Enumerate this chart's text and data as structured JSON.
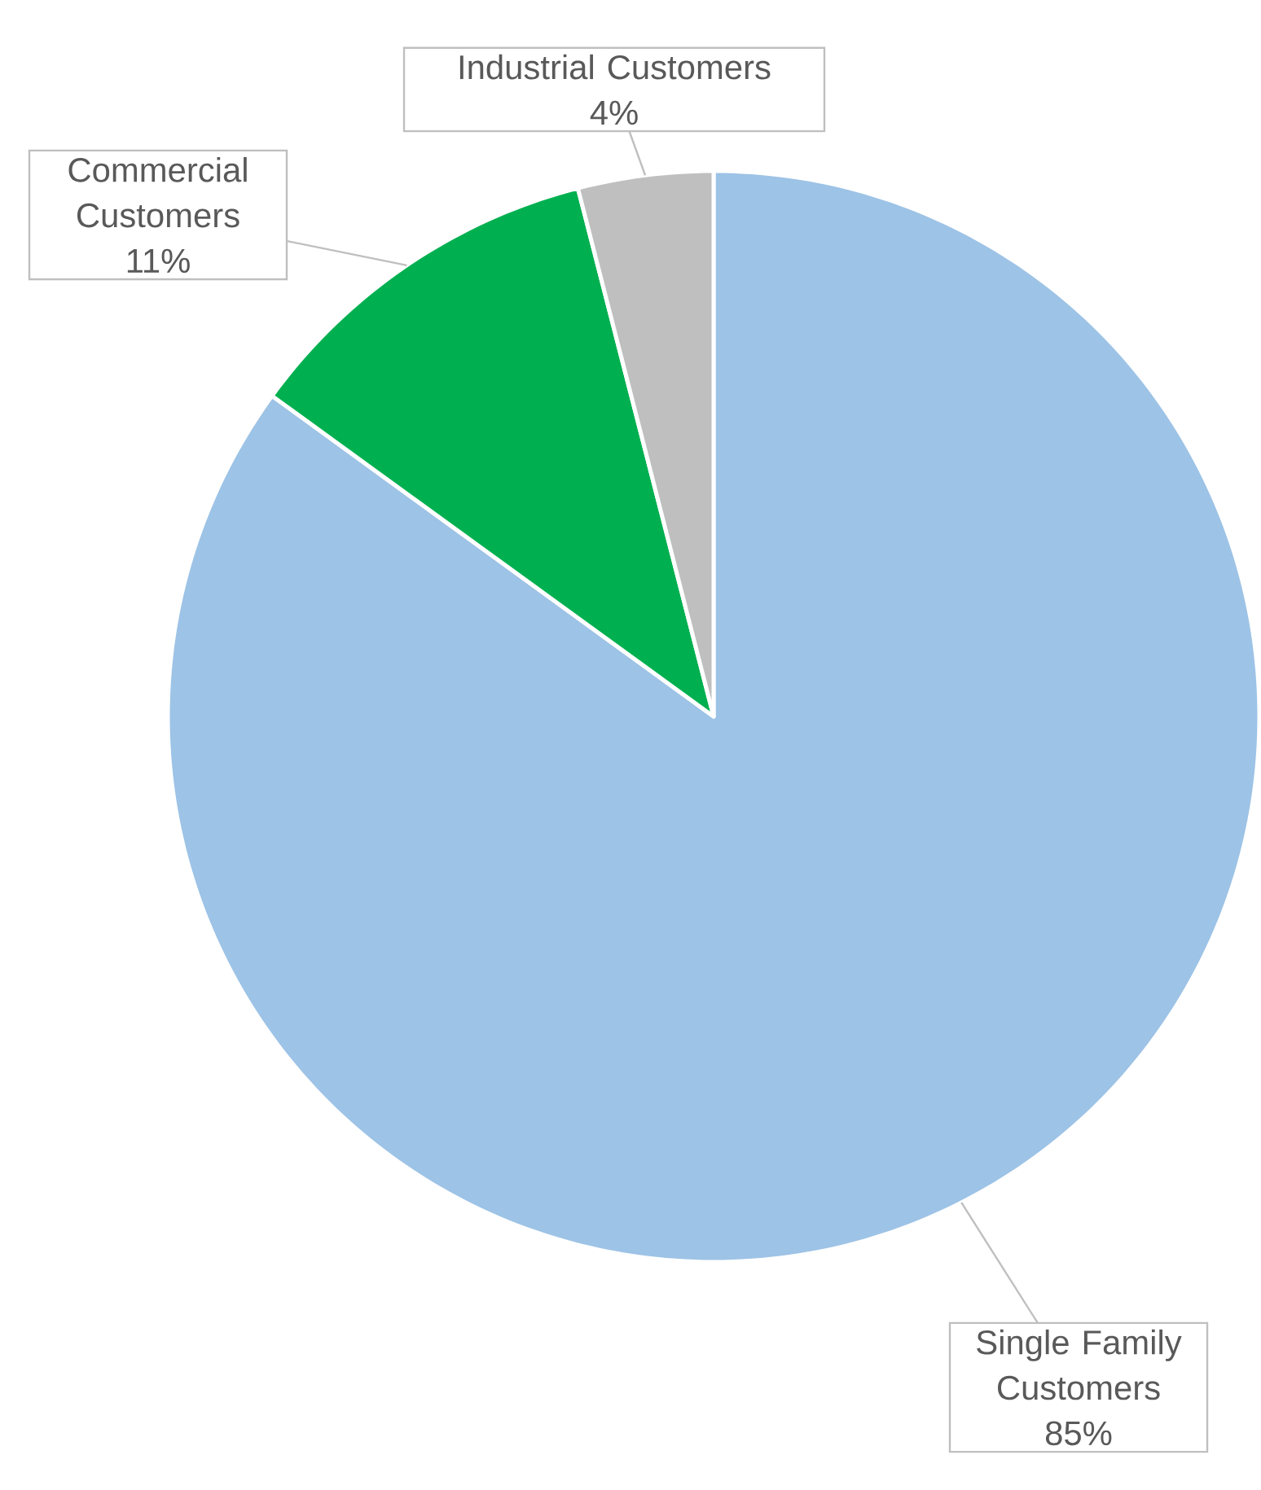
{
  "chart_data": {
    "type": "pie",
    "categories": [
      "Single Family Customers",
      "Commercial Customers",
      "Industrial Customers"
    ],
    "values": [
      85,
      11,
      4
    ],
    "value_labels": [
      "85%",
      "11%",
      "4%"
    ],
    "colors": [
      "#9dc3e6",
      "#00b050",
      "#bfbfbf"
    ]
  }
}
